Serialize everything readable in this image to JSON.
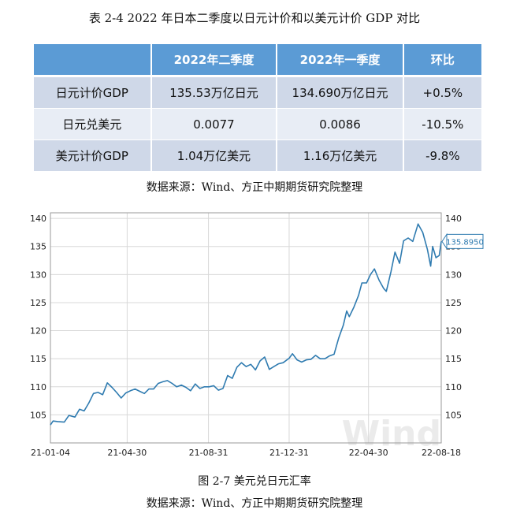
{
  "table_title": "表 2-4 2022 年日本二季度以日元计价和以美元计价 GDP 对比",
  "table": {
    "headers": [
      "",
      "2022年二季度",
      "2022年一季度",
      "环比"
    ],
    "rows": [
      [
        "日元计价GDP",
        "135.53万亿日元",
        "134.690万亿日元",
        "+0.5%"
      ],
      [
        "日元兑美元",
        "0.0077",
        "0.0086",
        "-10.5%"
      ],
      [
        "美元计价GDP",
        "1.04万亿美元",
        "1.16万亿美元",
        "-9.8%"
      ]
    ]
  },
  "table_source": "数据来源：Wind、方正中期期货研究院整理",
  "figure_title": "图 2-7 美元兑日元汇率",
  "figure_source": "数据来源：Wind、方正中期期货研究院整理",
  "watermark": "Wind",
  "colors": {
    "header": "#5b9bd5",
    "row_odd": "#cfd8e8",
    "row_even": "#e8edf5",
    "line": "#2f7bb0",
    "grid": "#d8d8d8"
  },
  "chart_data": {
    "type": "line",
    "title": "",
    "xlabel": "",
    "ylabel": "",
    "ylim": [
      100,
      141
    ],
    "yticks": [
      105,
      110,
      115,
      120,
      125,
      130,
      135,
      140
    ],
    "xtick_labels": [
      "21-01-04",
      "21-04-30",
      "21-08-31",
      "21-12-31",
      "22-04-30",
      "22-08-18"
    ],
    "xtick_dates": [
      "2021-01-04",
      "2021-04-30",
      "2021-08-31",
      "2021-12-31",
      "2022-04-30",
      "2022-08-18"
    ],
    "x_range": [
      "2021-01-04",
      "2022-08-18"
    ],
    "last_value_label": "135.8950",
    "grid": true,
    "series": [
      {
        "values": [
          [
            "2021-01-04",
            103.2
          ],
          [
            "2021-01-08",
            103.9
          ],
          [
            "2021-01-15",
            103.8
          ],
          [
            "2021-01-25",
            103.7
          ],
          [
            "2021-02-01",
            104.9
          ],
          [
            "2021-02-10",
            104.6
          ],
          [
            "2021-02-17",
            106.0
          ],
          [
            "2021-02-24",
            105.7
          ],
          [
            "2021-03-03",
            107.1
          ],
          [
            "2021-03-10",
            108.8
          ],
          [
            "2021-03-17",
            109.0
          ],
          [
            "2021-03-24",
            108.6
          ],
          [
            "2021-03-31",
            110.7
          ],
          [
            "2021-04-07",
            109.9
          ],
          [
            "2021-04-14",
            109.0
          ],
          [
            "2021-04-21",
            108.0
          ],
          [
            "2021-04-28",
            108.9
          ],
          [
            "2021-05-05",
            109.3
          ],
          [
            "2021-05-12",
            109.6
          ],
          [
            "2021-05-19",
            109.2
          ],
          [
            "2021-05-26",
            108.8
          ],
          [
            "2021-06-02",
            109.6
          ],
          [
            "2021-06-09",
            109.6
          ],
          [
            "2021-06-16",
            110.6
          ],
          [
            "2021-06-23",
            110.9
          ],
          [
            "2021-06-30",
            111.1
          ],
          [
            "2021-07-07",
            110.6
          ],
          [
            "2021-07-14",
            110.0
          ],
          [
            "2021-07-21",
            110.3
          ],
          [
            "2021-07-28",
            109.9
          ],
          [
            "2021-08-04",
            109.3
          ],
          [
            "2021-08-11",
            110.5
          ],
          [
            "2021-08-18",
            109.7
          ],
          [
            "2021-08-25",
            110.0
          ],
          [
            "2021-09-01",
            110.0
          ],
          [
            "2021-09-08",
            110.2
          ],
          [
            "2021-09-15",
            109.4
          ],
          [
            "2021-09-22",
            109.7
          ],
          [
            "2021-09-29",
            112.0
          ],
          [
            "2021-10-06",
            111.5
          ],
          [
            "2021-10-13",
            113.5
          ],
          [
            "2021-10-20",
            114.3
          ],
          [
            "2021-10-27",
            113.6
          ],
          [
            "2021-11-03",
            114.0
          ],
          [
            "2021-11-10",
            113.0
          ],
          [
            "2021-11-17",
            114.6
          ],
          [
            "2021-11-24",
            115.3
          ],
          [
            "2021-12-01",
            113.1
          ],
          [
            "2021-12-08",
            113.6
          ],
          [
            "2021-12-15",
            114.1
          ],
          [
            "2021-12-22",
            114.3
          ],
          [
            "2021-12-31",
            115.1
          ],
          [
            "2022-01-05",
            115.9
          ],
          [
            "2022-01-12",
            114.8
          ],
          [
            "2022-01-19",
            114.4
          ],
          [
            "2022-01-26",
            114.8
          ],
          [
            "2022-02-02",
            114.9
          ],
          [
            "2022-02-09",
            115.6
          ],
          [
            "2022-02-16",
            115.0
          ],
          [
            "2022-02-23",
            115.0
          ],
          [
            "2022-03-02",
            115.5
          ],
          [
            "2022-03-09",
            115.8
          ],
          [
            "2022-03-16",
            118.7
          ],
          [
            "2022-03-23",
            121.0
          ],
          [
            "2022-03-28",
            123.5
          ],
          [
            "2022-04-01",
            122.5
          ],
          [
            "2022-04-08",
            124.2
          ],
          [
            "2022-04-15",
            126.3
          ],
          [
            "2022-04-20",
            128.5
          ],
          [
            "2022-04-27",
            128.5
          ],
          [
            "2022-05-03",
            130.0
          ],
          [
            "2022-05-09",
            131.0
          ],
          [
            "2022-05-16",
            129.0
          ],
          [
            "2022-05-23",
            127.5
          ],
          [
            "2022-05-27",
            127.0
          ],
          [
            "2022-06-03",
            130.5
          ],
          [
            "2022-06-09",
            134.0
          ],
          [
            "2022-06-16",
            132.0
          ],
          [
            "2022-06-22",
            136.0
          ],
          [
            "2022-06-29",
            136.5
          ],
          [
            "2022-07-06",
            135.9
          ],
          [
            "2022-07-14",
            139.0
          ],
          [
            "2022-07-21",
            137.5
          ],
          [
            "2022-07-28",
            134.5
          ],
          [
            "2022-08-02",
            131.5
          ],
          [
            "2022-08-05",
            135.0
          ],
          [
            "2022-08-10",
            133.0
          ],
          [
            "2022-08-15",
            133.4
          ],
          [
            "2022-08-18",
            135.895
          ]
        ]
      }
    ]
  }
}
